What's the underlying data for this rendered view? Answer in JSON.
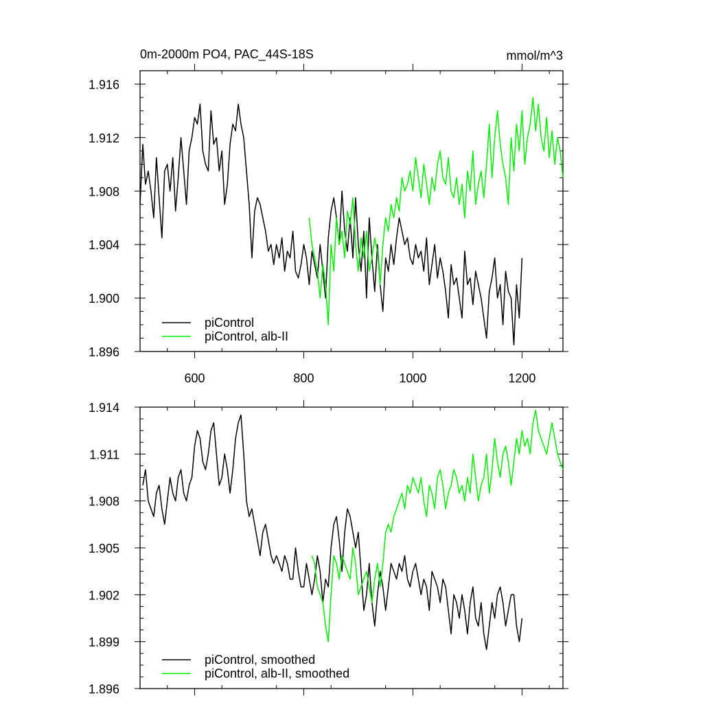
{
  "figure": {
    "title": "0m-2000m PO4, PAC_44S-18S",
    "units": "mmol/m^3"
  },
  "colors": {
    "black": "#000000",
    "green": "#00ee00"
  },
  "chart_data": [
    {
      "type": "line",
      "title": "0m-2000m PO4, PAC_44S-18S",
      "units": "mmol/m^3",
      "xlim": [
        500,
        1275
      ],
      "ylim": [
        1.896,
        1.917
      ],
      "x_ticks": [
        600,
        800,
        1000,
        1200
      ],
      "x_tick_labels": [
        "600",
        "800",
        "1000",
        "1200"
      ],
      "y_ticks": [
        1.896,
        1.9,
        1.904,
        1.908,
        1.912,
        1.916
      ],
      "y_tick_labels": [
        "1.896",
        "1.900",
        "1.904",
        "1.908",
        "1.912",
        "1.916"
      ],
      "legend": {
        "placement": "bottom-left",
        "entries": [
          "piControl",
          "piControl, alb-II"
        ]
      },
      "series": [
        {
          "name": "piControl",
          "color": "#000000",
          "x": [
            500,
            505,
            510,
            515,
            520,
            525,
            530,
            535,
            540,
            545,
            550,
            555,
            560,
            565,
            570,
            575,
            580,
            585,
            590,
            595,
            600,
            605,
            610,
            615,
            620,
            625,
            630,
            635,
            640,
            645,
            650,
            655,
            660,
            665,
            670,
            675,
            680,
            685,
            690,
            695,
            700,
            705,
            710,
            715,
            720,
            725,
            730,
            735,
            740,
            745,
            750,
            755,
            760,
            765,
            770,
            775,
            780,
            785,
            790,
            795,
            800,
            805,
            810,
            815,
            820,
            825,
            830,
            835,
            840,
            845,
            850,
            855,
            860,
            865,
            870,
            875,
            880,
            885,
            890,
            895,
            900,
            905,
            910,
            915,
            920,
            925,
            930,
            935,
            940,
            945,
            950,
            955,
            960,
            965,
            970,
            975,
            980,
            985,
            990,
            995,
            1000,
            1005,
            1010,
            1015,
            1020,
            1025,
            1030,
            1035,
            1040,
            1045,
            1050,
            1055,
            1060,
            1065,
            1070,
            1075,
            1080,
            1085,
            1090,
            1095,
            1100,
            1105,
            1110,
            1115,
            1120,
            1125,
            1130,
            1135,
            1140,
            1145,
            1150,
            1155,
            1160,
            1165,
            1170,
            1175,
            1180,
            1185,
            1190,
            1195,
            1200
          ],
          "values": [
            1.907,
            1.9115,
            1.9085,
            1.9095,
            1.908,
            1.906,
            1.9105,
            1.9075,
            1.9045,
            1.9095,
            1.91,
            1.908,
            1.9105,
            1.9065,
            1.909,
            1.912,
            1.9095,
            1.907,
            1.911,
            1.912,
            1.9135,
            1.913,
            1.9145,
            1.911,
            1.91,
            1.9095,
            1.914,
            1.9115,
            1.912,
            1.9095,
            1.911,
            1.907,
            1.9085,
            1.9115,
            1.913,
            1.9125,
            1.9145,
            1.913,
            1.912,
            1.9095,
            1.907,
            1.903,
            1.9065,
            1.9075,
            1.907,
            1.906,
            1.905,
            1.9035,
            1.904,
            1.9025,
            1.904,
            1.903,
            1.9045,
            1.902,
            1.9035,
            1.903,
            1.905,
            1.902,
            1.9015,
            1.9025,
            1.904,
            1.903,
            1.901,
            1.9035,
            1.9025,
            1.9015,
            1.904,
            1.902,
            1.9,
            1.9045,
            1.9065,
            1.9075,
            1.906,
            1.904,
            1.908,
            1.905,
            1.9035,
            1.906,
            1.903,
            1.9075,
            1.904,
            1.902,
            1.905,
            1.9,
            1.906,
            1.903,
            1.9005,
            1.904,
            1.901,
            1.899,
            1.903,
            1.902,
            1.904,
            1.9025,
            1.9045,
            1.906,
            1.905,
            1.904,
            1.9045,
            1.903,
            1.9025,
            1.904,
            1.903,
            1.9035,
            1.902,
            1.9045,
            1.901,
            1.9025,
            1.904,
            1.9015,
            1.903,
            1.902,
            1.9005,
            1.8985,
            1.9025,
            1.901,
            1.9015,
            1.9,
            1.8985,
            1.9035,
            1.901,
            1.9015,
            1.8995,
            1.902,
            1.901,
            1.9,
            1.8985,
            1.897,
            1.9005,
            1.9015,
            1.903,
            1.9,
            1.901,
            1.898,
            1.902,
            1.9005,
            1.9,
            1.8965,
            1.901,
            1.8985,
            1.903
          ]
        },
        {
          "name": "piControl, alb-II",
          "color": "#00ee00",
          "x": [
            810,
            815,
            820,
            825,
            830,
            835,
            840,
            845,
            850,
            855,
            860,
            865,
            870,
            875,
            880,
            885,
            890,
            895,
            900,
            905,
            910,
            915,
            920,
            925,
            930,
            935,
            940,
            945,
            950,
            955,
            960,
            965,
            970,
            975,
            980,
            985,
            990,
            995,
            1000,
            1005,
            1010,
            1015,
            1020,
            1025,
            1030,
            1035,
            1040,
            1045,
            1050,
            1055,
            1060,
            1065,
            1070,
            1075,
            1080,
            1085,
            1090,
            1095,
            1100,
            1105,
            1110,
            1115,
            1120,
            1125,
            1130,
            1135,
            1140,
            1145,
            1150,
            1155,
            1160,
            1165,
            1170,
            1175,
            1180,
            1185,
            1190,
            1195,
            1200,
            1205,
            1210,
            1215,
            1220,
            1225,
            1230,
            1235,
            1240,
            1245,
            1250,
            1255,
            1260,
            1265,
            1270,
            1275
          ],
          "values": [
            1.906,
            1.904,
            1.903,
            1.902,
            1.9,
            1.9025,
            1.901,
            1.898,
            1.904,
            1.902,
            1.906,
            1.904,
            1.905,
            1.903,
            1.9065,
            1.9055,
            1.9075,
            1.904,
            1.902,
            1.9045,
            1.903,
            1.905,
            1.902,
            1.903,
            1.9045,
            1.9035,
            1.901,
            1.904,
            1.906,
            1.905,
            1.907,
            1.906,
            1.9075,
            1.9065,
            1.909,
            1.908,
            1.9085,
            1.9095,
            1.908,
            1.9105,
            1.909,
            1.9075,
            1.91,
            1.9085,
            1.907,
            1.909,
            1.908,
            1.91,
            1.911,
            1.909,
            1.9085,
            1.9105,
            1.908,
            1.9075,
            1.909,
            1.907,
            1.9085,
            1.906,
            1.9095,
            1.908,
            1.911,
            1.907,
            1.9085,
            1.9095,
            1.9075,
            1.91,
            1.913,
            1.909,
            1.912,
            1.914,
            1.9115,
            1.91,
            1.909,
            1.907,
            1.912,
            1.9095,
            1.913,
            1.911,
            1.914,
            1.91,
            1.912,
            1.913,
            1.915,
            1.9125,
            1.9145,
            1.912,
            1.911,
            1.9135,
            1.9105,
            1.9125,
            1.91,
            1.912,
            1.911,
            1.909
          ]
        }
      ]
    },
    {
      "type": "line",
      "xlim": [
        500,
        1275
      ],
      "ylim": [
        1.896,
        1.914
      ],
      "x_ticks": [
        600,
        800,
        1000,
        1200
      ],
      "y_ticks": [
        1.896,
        1.899,
        1.902,
        1.905,
        1.908,
        1.911,
        1.914
      ],
      "y_tick_labels": [
        "1.896",
        "1.899",
        "1.902",
        "1.905",
        "1.908",
        "1.911",
        "1.914"
      ],
      "legend": {
        "placement": "bottom-left",
        "entries": [
          "piControl, smoothed",
          "piControl, alb-II, smoothed"
        ]
      },
      "series": [
        {
          "name": "piControl, smoothed",
          "color": "#000000",
          "x": [
            505,
            510,
            515,
            520,
            525,
            530,
            535,
            540,
            545,
            550,
            555,
            560,
            565,
            570,
            575,
            580,
            585,
            590,
            595,
            600,
            605,
            610,
            615,
            620,
            625,
            630,
            635,
            640,
            645,
            650,
            655,
            660,
            665,
            670,
            675,
            680,
            685,
            690,
            695,
            700,
            705,
            710,
            715,
            720,
            725,
            730,
            735,
            740,
            745,
            750,
            755,
            760,
            765,
            770,
            775,
            780,
            785,
            790,
            795,
            800,
            805,
            810,
            815,
            820,
            825,
            830,
            835,
            840,
            845,
            850,
            855,
            860,
            865,
            870,
            875,
            880,
            885,
            890,
            895,
            900,
            905,
            910,
            915,
            920,
            925,
            930,
            935,
            940,
            945,
            950,
            955,
            960,
            965,
            970,
            975,
            980,
            985,
            990,
            995,
            1000,
            1005,
            1010,
            1015,
            1020,
            1025,
            1030,
            1035,
            1040,
            1045,
            1050,
            1055,
            1060,
            1065,
            1070,
            1075,
            1080,
            1085,
            1090,
            1095,
            1100,
            1105,
            1110,
            1115,
            1120,
            1125,
            1130,
            1135,
            1140,
            1145,
            1150,
            1155,
            1160,
            1165,
            1170,
            1175,
            1180,
            1185,
            1190,
            1195,
            1200
          ],
          "values": [
            1.909,
            1.91,
            1.908,
            1.9075,
            1.907,
            1.9085,
            1.909,
            1.9075,
            1.9065,
            1.908,
            1.9095,
            1.9085,
            1.908,
            1.9095,
            1.91,
            1.9085,
            1.908,
            1.909,
            1.9095,
            1.9115,
            1.9125,
            1.912,
            1.9105,
            1.91,
            1.911,
            1.9125,
            1.913,
            1.911,
            1.909,
            1.9095,
            1.911,
            1.91,
            1.9085,
            1.91,
            1.912,
            1.913,
            1.9135,
            1.911,
            1.908,
            1.907,
            1.9075,
            1.9065,
            1.9055,
            1.9045,
            1.906,
            1.9065,
            1.9055,
            1.9045,
            1.904,
            1.9045,
            1.904,
            1.9035,
            1.9045,
            1.904,
            1.903,
            1.903,
            1.905,
            1.9035,
            1.9025,
            1.9025,
            1.904,
            1.903,
            1.902,
            1.903,
            1.9045,
            1.9035,
            1.9015,
            1.903,
            1.9025,
            1.905,
            1.9065,
            1.907,
            1.9055,
            1.9035,
            1.906,
            1.9075,
            1.907,
            1.906,
            1.905,
            1.906,
            1.9035,
            1.901,
            1.902,
            1.904,
            1.9015,
            1.9,
            1.902,
            1.9035,
            1.9025,
            1.901,
            1.9025,
            1.904,
            1.9035,
            1.903,
            1.904,
            1.9035,
            1.9045,
            1.903,
            1.9025,
            1.9035,
            1.904,
            1.903,
            1.902,
            1.903,
            1.9025,
            1.901,
            1.9035,
            1.903,
            1.9025,
            1.9015,
            1.903,
            1.9025,
            1.901,
            1.8995,
            1.902,
            1.9015,
            1.9005,
            1.902,
            1.901,
            1.8995,
            1.9015,
            1.9025,
            1.9005,
            1.9,
            1.9015,
            1.8995,
            1.8985,
            1.9,
            1.9015,
            1.9005,
            1.902,
            1.9025,
            1.9015,
            1.9,
            1.901,
            1.902,
            1.902,
            1.9,
            1.899,
            1.9005
          ]
        },
        {
          "name": "piControl, alb-II, smoothed",
          "color": "#00ee00",
          "x": [
            815,
            820,
            825,
            830,
            835,
            840,
            845,
            850,
            855,
            860,
            865,
            870,
            875,
            880,
            885,
            890,
            895,
            900,
            905,
            910,
            915,
            920,
            925,
            930,
            935,
            940,
            945,
            950,
            955,
            960,
            965,
            970,
            975,
            980,
            985,
            990,
            995,
            1000,
            1005,
            1010,
            1015,
            1020,
            1025,
            1030,
            1035,
            1040,
            1045,
            1050,
            1055,
            1060,
            1065,
            1070,
            1075,
            1080,
            1085,
            1090,
            1095,
            1100,
            1105,
            1110,
            1115,
            1120,
            1125,
            1130,
            1135,
            1140,
            1145,
            1150,
            1155,
            1160,
            1165,
            1170,
            1175,
            1180,
            1185,
            1190,
            1195,
            1200,
            1205,
            1210,
            1215,
            1220,
            1225,
            1230,
            1235,
            1240,
            1245,
            1250,
            1255,
            1260,
            1265,
            1270,
            1275
          ],
          "values": [
            1.9045,
            1.904,
            1.9025,
            1.902,
            1.9015,
            1.9,
            1.899,
            1.902,
            1.9045,
            1.904,
            1.903,
            1.9045,
            1.904,
            1.9035,
            1.903,
            1.905,
            1.904,
            1.902,
            1.9025,
            1.903,
            1.9035,
            1.9025,
            1.9015,
            1.903,
            1.904,
            1.9025,
            1.904,
            1.906,
            1.9065,
            1.906,
            1.907,
            1.9075,
            1.908,
            1.9085,
            1.9075,
            1.909,
            1.9085,
            1.9095,
            1.909,
            1.9085,
            1.9095,
            1.908,
            1.907,
            1.909,
            1.9085,
            1.9075,
            1.9095,
            1.91,
            1.909,
            1.9075,
            1.9085,
            1.909,
            1.91,
            1.9095,
            1.9085,
            1.909,
            1.908,
            1.9095,
            1.9085,
            1.911,
            1.9095,
            1.908,
            1.909,
            1.9095,
            1.911,
            1.9085,
            1.91,
            1.912,
            1.9105,
            1.9095,
            1.911,
            1.9115,
            1.9105,
            1.909,
            1.9105,
            1.912,
            1.911,
            1.9125,
            1.9115,
            1.912,
            1.911,
            1.913,
            1.9138,
            1.9125,
            1.912,
            1.9115,
            1.911,
            1.912,
            1.913,
            1.912,
            1.911,
            1.9105,
            1.91
          ]
        }
      ]
    }
  ]
}
